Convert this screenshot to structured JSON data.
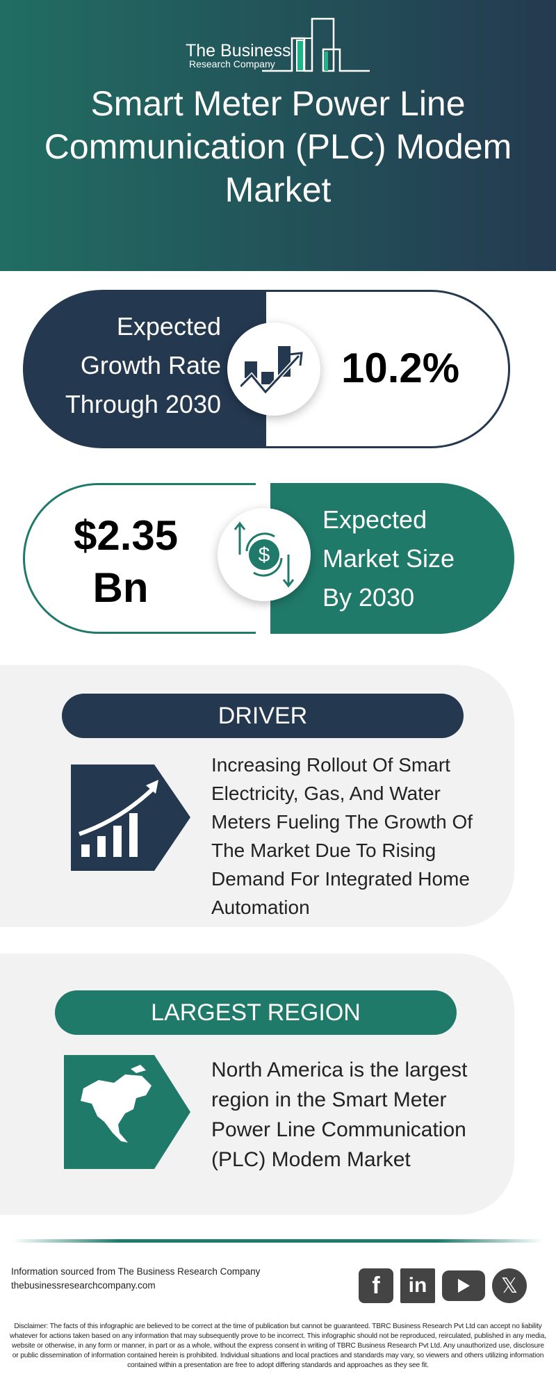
{
  "header": {
    "logo_line1": "The Business",
    "logo_line2": "Research Company",
    "title": "Smart Meter Power Line Communication (PLC) Modem Market"
  },
  "growth": {
    "label": [
      "Expected",
      "Growth Rate",
      "Through 2030"
    ],
    "value": "10.2%",
    "icon": "growth-chart-icon"
  },
  "market_size": {
    "value_line1": "$2.35",
    "value_line2": "Bn",
    "label": [
      "Expected",
      "Market Size",
      "By 2030"
    ],
    "icon": "dollar-exchange-icon"
  },
  "driver": {
    "heading": "DRIVER",
    "text": "Increasing Rollout Of Smart Electricity, Gas, And Water Meters Fueling The Growth Of The Market Due To Rising Demand For Integrated Home Automation",
    "icon": "rising-bars-icon"
  },
  "region": {
    "heading": "LARGEST REGION",
    "text": "North America is the largest region in the Smart Meter Power Line Communication (PLC) Modem Market",
    "icon": "north-america-map-icon"
  },
  "footer": {
    "source": "Information sourced from The Business Research Company",
    "website": "thebusinessresearchcompany.com",
    "social": [
      "facebook",
      "linkedin",
      "youtube",
      "x"
    ],
    "disclaimer": "Disclaimer: The facts of this infographic are believed to be correct at the time of publication but cannot be guaranteed. TBRC Business Research Pvt Ltd can accept no liability whatever for actions taken based on any information that may subsequently prove to be incorrect. This infographic should not be reproduced, reirculated, published in any media, website or otherwise, in any form or manner, in part or as a whole, without the express consent in writing of TBRC Business Research Pvt Ltd. Any unauthorized use, disclosure or public dissemination of information contained herein is prohibited. Individual situations and local practices and standards may vary, so viewers and others utilizing information contained within a presentation are free to adopt differing standards and approaches as they see fit."
  },
  "colors": {
    "navy": "#243850",
    "green": "#207a6a",
    "accent": "#1db487"
  }
}
